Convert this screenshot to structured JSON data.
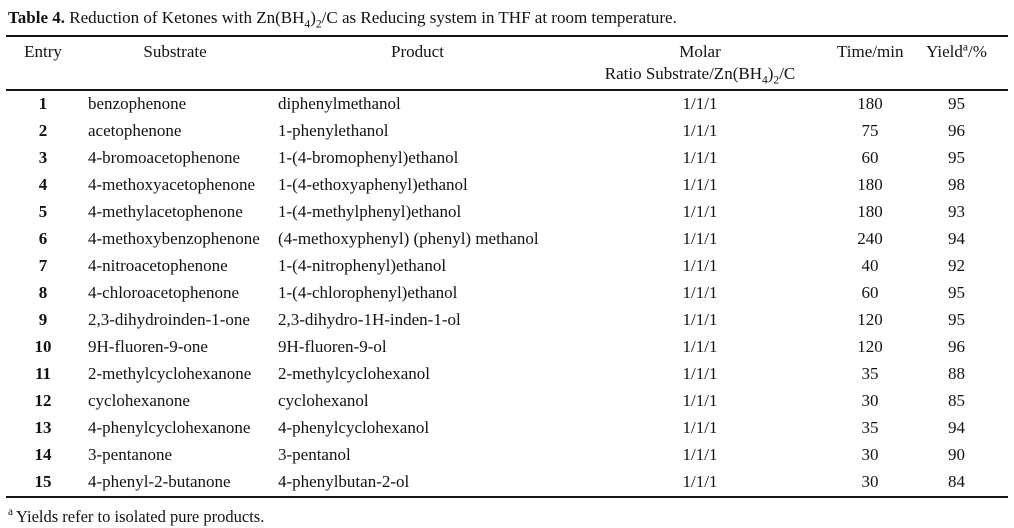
{
  "title": {
    "label": "Table 4.",
    "caption": " Reduction of Ketones with Zn(BH~4~)~2~/C as Reducing system in THF at room temperature."
  },
  "table": {
    "columns": [
      {
        "id": "entry",
        "label": "Entry"
      },
      {
        "id": "substrate",
        "label": "Substrate"
      },
      {
        "id": "product",
        "label": "Product"
      },
      {
        "id": "molar_ratio",
        "label": "Molar\nRatio Substrate/Zn(BH~4~)~2~/C"
      },
      {
        "id": "time_min",
        "label": "Time/min"
      },
      {
        "id": "yield_pct",
        "label": "Yield^a^/%"
      }
    ],
    "rows": [
      {
        "entry": "1",
        "substrate": "benzophenone",
        "product": "diphenylmethanol",
        "molar_ratio": "1/1/1",
        "time_min": "180",
        "yield_pct": "95"
      },
      {
        "entry": "2",
        "substrate": "acetophenone",
        "product": "1-phenylethanol",
        "molar_ratio": "1/1/1",
        "time_min": "75",
        "yield_pct": "96"
      },
      {
        "entry": "3",
        "substrate": "4-bromoacetophenone",
        "product": "1-(4-bromophenyl)ethanol",
        "molar_ratio": "1/1/1",
        "time_min": "60",
        "yield_pct": "95"
      },
      {
        "entry": "4",
        "substrate": "4-methoxyacetophenone",
        "product": "1-(4-ethoxyaphenyl)ethanol",
        "molar_ratio": "1/1/1",
        "time_min": "180",
        "yield_pct": "98"
      },
      {
        "entry": "5",
        "substrate": "4-methylacetophenone",
        "product": "1-(4-methylphenyl)ethanol",
        "molar_ratio": "1/1/1",
        "time_min": "180",
        "yield_pct": "93"
      },
      {
        "entry": "6",
        "substrate": "4-methoxybenzophenone",
        "product": "(4-methoxyphenyl) (phenyl) methanol",
        "molar_ratio": "1/1/1",
        "time_min": "240",
        "yield_pct": "94"
      },
      {
        "entry": "7",
        "substrate": "4-nitroacetophenone",
        "product": "1-(4-nitrophenyl)ethanol",
        "molar_ratio": "1/1/1",
        "time_min": "40",
        "yield_pct": "92"
      },
      {
        "entry": "8",
        "substrate": "4-chloroacetophenone",
        "product": "1-(4-chlorophenyl)ethanol",
        "molar_ratio": "1/1/1",
        "time_min": "60",
        "yield_pct": "95"
      },
      {
        "entry": "9",
        "substrate": "2,3-dihydroinden-1-one",
        "product": "2,3-dihydro-1H-inden-1-ol",
        "molar_ratio": "1/1/1",
        "time_min": "120",
        "yield_pct": "95"
      },
      {
        "entry": "10",
        "substrate": "9H-fluoren-9-one",
        "product": "9H-fluoren-9-ol",
        "molar_ratio": "1/1/1",
        "time_min": "120",
        "yield_pct": "96"
      },
      {
        "entry": "11",
        "substrate": "2-methylcyclohexanone",
        "product": "2-methylcyclohexanol",
        "molar_ratio": "1/1/1",
        "time_min": "35",
        "yield_pct": "88"
      },
      {
        "entry": "12",
        "substrate": "cyclohexanone",
        "product": "cyclohexanol",
        "molar_ratio": "1/1/1",
        "time_min": "30",
        "yield_pct": "85"
      },
      {
        "entry": "13",
        "substrate": "4-phenylcyclohexanone",
        "product": "4-phenylcyclohexanol",
        "molar_ratio": "1/1/1",
        "time_min": "35",
        "yield_pct": "94"
      },
      {
        "entry": "14",
        "substrate": "3-pentanone",
        "product": "3-pentanol",
        "molar_ratio": "1/1/1",
        "time_min": "30",
        "yield_pct": "90"
      },
      {
        "entry": "15",
        "substrate": "4-phenyl-2-butanone",
        "product": "4-phenylbutan-2-ol",
        "molar_ratio": "1/1/1",
        "time_min": "30",
        "yield_pct": "84"
      }
    ]
  },
  "footnote": {
    "marker": "a",
    "text": "Yields refer to isolated pure products."
  },
  "colors": {
    "text": "#121212",
    "rule": "#151515",
    "background": "#ffffff"
  }
}
